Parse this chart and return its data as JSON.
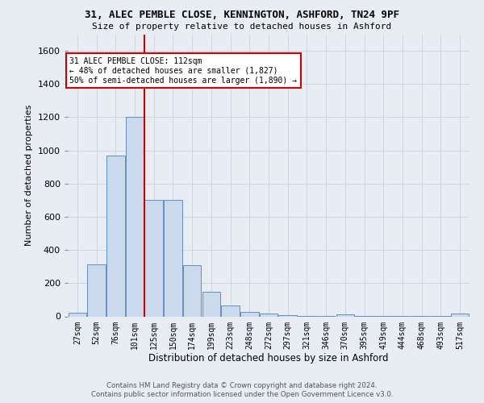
{
  "title": "31, ALEC PEMBLE CLOSE, KENNINGTON, ASHFORD, TN24 9PF",
  "subtitle": "Size of property relative to detached houses in Ashford",
  "xlabel": "Distribution of detached houses by size in Ashford",
  "ylabel": "Number of detached properties",
  "footer1": "Contains HM Land Registry data © Crown copyright and database right 2024.",
  "footer2": "Contains public sector information licensed under the Open Government Licence v3.0.",
  "bar_color": "#cad9ec",
  "bar_edgecolor": "#6090c0",
  "bar_linewidth": 0.7,
  "vline_x": 4,
  "vline_color": "#cc0000",
  "annotation_text": "31 ALEC PEMBLE CLOSE: 112sqm\n← 48% of detached houses are smaller (1,827)\n50% of semi-detached houses are larger (1,890) →",
  "annotation_box_facecolor": "#ffffff",
  "annotation_box_edgecolor": "#cc0000",
  "ylim": [
    0,
    1700
  ],
  "yticks": [
    0,
    200,
    400,
    600,
    800,
    1000,
    1200,
    1400,
    1600
  ],
  "categories": [
    "27sqm",
    "52sqm",
    "76sqm",
    "101sqm",
    "125sqm",
    "150sqm",
    "174sqm",
    "199sqm",
    "223sqm",
    "248sqm",
    "272sqm",
    "297sqm",
    "321sqm",
    "346sqm",
    "370sqm",
    "395sqm",
    "419sqm",
    "444sqm",
    "468sqm",
    "493sqm",
    "517sqm"
  ],
  "values": [
    20,
    315,
    970,
    1200,
    700,
    700,
    310,
    150,
    65,
    25,
    15,
    5,
    2,
    2,
    10,
    2,
    2,
    2,
    2,
    2,
    15
  ],
  "grid_color": "#ccd5e0",
  "bg_color": "#e8edf4",
  "title_fontsize": 9,
  "subtitle_fontsize": 8,
  "ylabel_fontsize": 8,
  "xlabel_fontsize": 8.5,
  "ytick_fontsize": 8,
  "xtick_fontsize": 7
}
